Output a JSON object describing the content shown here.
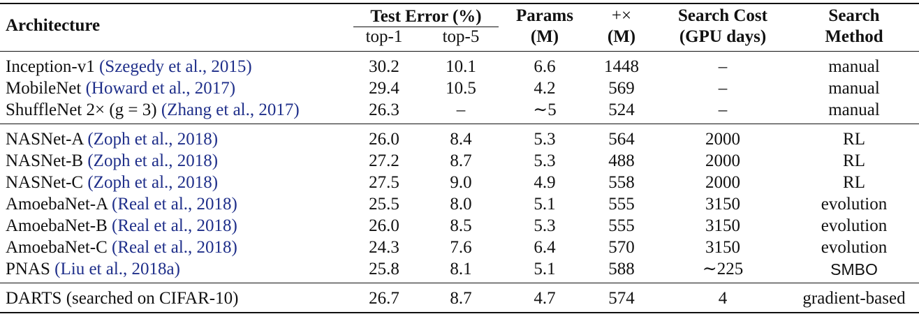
{
  "header": {
    "architecture": "Architecture",
    "test_error": "Test Error (%)",
    "top1": "top-1",
    "top5": "top-5",
    "params_l1": "Params",
    "params_l2": "(M)",
    "multadds_l1": "+×",
    "multadds_l2": "(M)",
    "search_cost_l1": "Search Cost",
    "search_cost_l2": "(GPU days)",
    "search_method_l1": "Search",
    "search_method_l2": "Method"
  },
  "groups": [
    {
      "rows": [
        {
          "arch": "Inception-v1",
          "cite": "(Szegedy et al., 2015)",
          "top1": "30.2",
          "top5": "10.1",
          "params": "6.6",
          "multadds": "1448",
          "cost": "–",
          "method": "manual"
        },
        {
          "arch": "MobileNet",
          "cite": "(Howard et al., 2017)",
          "top1": "29.4",
          "top5": "10.5",
          "params": "4.2",
          "multadds": "569",
          "cost": "–",
          "method": "manual"
        },
        {
          "arch": "ShuffleNet 2× (g = 3)",
          "cite": "(Zhang et al., 2017)",
          "top1": "26.3",
          "top5": "–",
          "params": "∼5",
          "multadds": "524",
          "cost": "–",
          "method": "manual"
        }
      ]
    },
    {
      "rows": [
        {
          "arch": "NASNet-A",
          "cite": "(Zoph et al., 2018)",
          "top1": "26.0",
          "top5": "8.4",
          "params": "5.3",
          "multadds": "564",
          "cost": "2000",
          "method": "RL"
        },
        {
          "arch": "NASNet-B",
          "cite": "(Zoph et al., 2018)",
          "top1": "27.2",
          "top5": "8.7",
          "params": "5.3",
          "multadds": "488",
          "cost": "2000",
          "method": "RL"
        },
        {
          "arch": "NASNet-C",
          "cite": "(Zoph et al., 2018)",
          "top1": "27.5",
          "top5": "9.0",
          "params": "4.9",
          "multadds": "558",
          "cost": "2000",
          "method": "RL"
        },
        {
          "arch": "AmoebaNet-A",
          "cite": "(Real et al., 2018)",
          "top1": "25.5",
          "top5": "8.0",
          "params": "5.1",
          "multadds": "555",
          "cost": "3150",
          "method": "evolution"
        },
        {
          "arch": "AmoebaNet-B",
          "cite": "(Real et al., 2018)",
          "top1": "26.0",
          "top5": "8.5",
          "params": "5.3",
          "multadds": "555",
          "cost": "3150",
          "method": "evolution"
        },
        {
          "arch": "AmoebaNet-C",
          "cite": "(Real et al., 2018)",
          "top1": "24.3",
          "top5": "7.6",
          "params": "6.4",
          "multadds": "570",
          "cost": "3150",
          "method": "evolution"
        },
        {
          "arch": "PNAS",
          "cite": "(Liu et al., 2018a)",
          "top1": "25.8",
          "top5": "8.1",
          "params": "5.1",
          "multadds": "588",
          "cost": "∼225",
          "method": "SMBO"
        }
      ]
    },
    {
      "rows": [
        {
          "arch": "DARTS (searched on CIFAR-10)",
          "cite": "",
          "top1": "26.7",
          "top5": "8.7",
          "params": "4.7",
          "multadds": "574",
          "cost": "4",
          "method": "gradient-based"
        }
      ]
    }
  ],
  "colors": {
    "citation": "#1f2f8a",
    "text": "#111111"
  }
}
